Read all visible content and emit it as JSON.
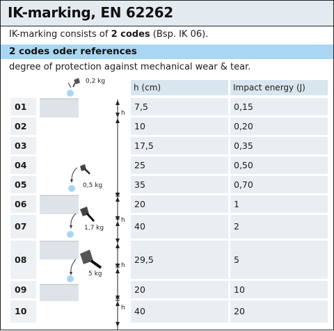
{
  "title": "IK-marking, EN 62262",
  "intro": {
    "before": "IK-marking consists of ",
    "bold": "2 codes",
    "after": " (Bsp. IK 06)."
  },
  "subheading": "2 codes oder references",
  "description": "degree of protection against mechanical wear & tear.",
  "table": {
    "headers": {
      "height": "h (cm)",
      "energy": "Impact energy (J)"
    },
    "rows": [
      {
        "code": "01",
        "height": "7,5",
        "energy": "0,15"
      },
      {
        "code": "02",
        "height": "10",
        "energy": "0,20"
      },
      {
        "code": "03",
        "height": "17,5",
        "energy": "0,35"
      },
      {
        "code": "04",
        "height": "25",
        "energy": "0,50"
      },
      {
        "code": "05",
        "height": "35",
        "energy": "0,70"
      },
      {
        "code": "06",
        "height": "20",
        "energy": "1"
      },
      {
        "code": "07",
        "height": "40",
        "energy": "2"
      },
      {
        "code": "08",
        "height": "29,5",
        "energy": "5"
      },
      {
        "code": "09",
        "height": "20",
        "energy": "10"
      },
      {
        "code": "10",
        "height": "40",
        "energy": "20"
      }
    ]
  },
  "illustration": {
    "mass_labels": [
      "0,2 kg",
      "0,5 kg",
      "1,7 kg",
      "5 kg"
    ],
    "height_label": "h",
    "colors": {
      "ball": "#a9d7f3",
      "slab": "#dde3e8",
      "hammer": "#555555"
    }
  }
}
